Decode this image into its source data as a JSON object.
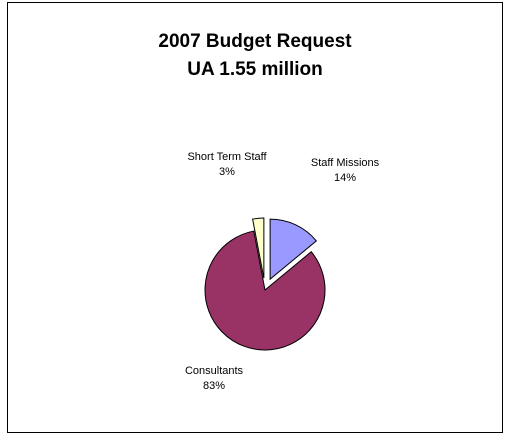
{
  "chart_data": {
    "type": "pie",
    "title": "2007 Budget Request",
    "subtitle": "UA 1.55 million",
    "slices": [
      {
        "label": "Staff Missions",
        "value": 14,
        "value_label": "14%",
        "color": "#9999ff",
        "exploded": true
      },
      {
        "label": "Consultants",
        "value": 83,
        "value_label": "83%",
        "color": "#993366",
        "exploded": false
      },
      {
        "label": "Short Term Staff",
        "value": 3,
        "value_label": "3%",
        "color": "#ffffcc",
        "exploded": true
      }
    ],
    "start_angle_deg": 0,
    "direction": "clockwise",
    "legend": "none"
  }
}
